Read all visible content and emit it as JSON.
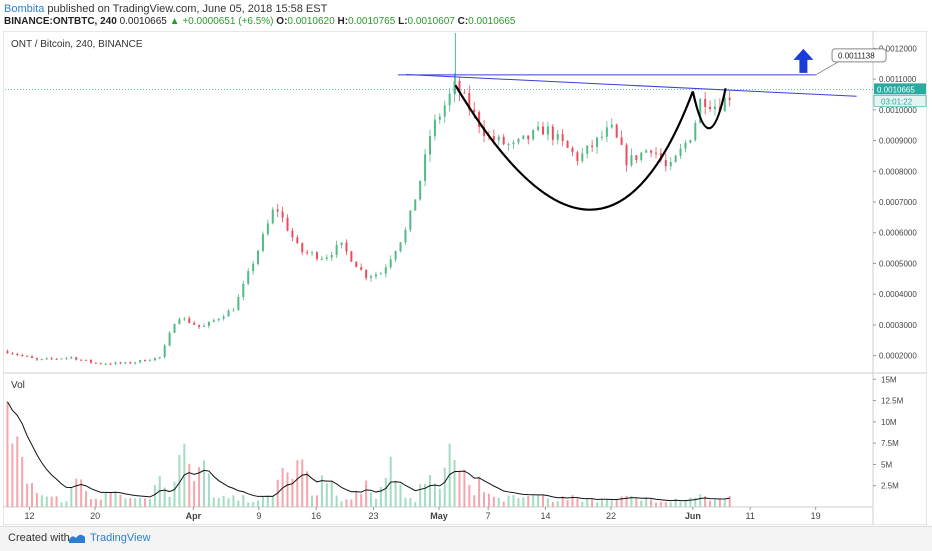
{
  "header": {
    "author": "Bombita",
    "published": "published on TradingView.com, June 05, 2018 15:58 EST",
    "symbol": "BINANCE:ONTBTC, 240",
    "last": "0.0010665",
    "change": "+0.0000651 (+6.5%)",
    "o_label": "O:",
    "o": "0.0010620",
    "h_label": "H:",
    "h": "0.0010765",
    "l_label": "L:",
    "l": "0.0010607",
    "c_label": "C:",
    "c": "0.0010665"
  },
  "footer": {
    "created": "Created with",
    "brand": "TradingView"
  },
  "colors": {
    "up": "#53b987",
    "down": "#eb4d5c",
    "trend": "#3b3fd6",
    "arrow": "#1a3cd8",
    "price_tag": "#2aa9a0"
  },
  "chart_data": [
    {
      "type": "candlestick",
      "title": "ONT / Bitcoin, 240, BINANCE",
      "yaxis_ticks": [
        "0.0012000",
        "0.0011000",
        "0.0010000",
        "0.0009000",
        "0.0008000",
        "0.0007000",
        "0.0006000",
        "0.0005000",
        "0.0004000",
        "0.0003000",
        "0.0002000"
      ],
      "ylim": [
        0.00015,
        0.00125
      ],
      "xaxis_ticks": [
        "12",
        "20",
        "Apr",
        "9",
        "16",
        "23",
        "May",
        "7",
        "14",
        "22",
        "Jun",
        "11",
        "19"
      ],
      "xaxis_days": [
        0,
        8,
        20,
        28,
        35,
        42,
        50,
        56,
        63,
        71,
        81,
        88,
        96
      ],
      "xlim_days": [
        -3,
        103
      ],
      "last_day": 86,
      "price_path": [
        {
          "day": -3,
          "price": 0.000215
        },
        {
          "day": 1,
          "price": 0.000185
        },
        {
          "day": 5,
          "price": 0.000195
        },
        {
          "day": 8,
          "price": 0.000175
        },
        {
          "day": 12,
          "price": 0.000175
        },
        {
          "day": 16,
          "price": 0.000195
        },
        {
          "day": 18,
          "price": 0.00033
        },
        {
          "day": 21,
          "price": 0.00029
        },
        {
          "day": 25,
          "price": 0.000355
        },
        {
          "day": 28,
          "price": 0.00055
        },
        {
          "day": 30,
          "price": 0.00069
        },
        {
          "day": 33,
          "price": 0.00054
        },
        {
          "day": 36,
          "price": 0.00052
        },
        {
          "day": 38,
          "price": 0.00056
        },
        {
          "day": 41,
          "price": 0.00046
        },
        {
          "day": 43,
          "price": 0.00047
        },
        {
          "day": 46,
          "price": 0.00061
        },
        {
          "day": 48,
          "price": 0.0008
        },
        {
          "day": 49,
          "price": 0.00093
        },
        {
          "day": 52,
          "price": 0.00108
        },
        {
          "day": 56,
          "price": 0.00091
        },
        {
          "day": 59,
          "price": 0.00088
        },
        {
          "day": 63,
          "price": 0.00094
        },
        {
          "day": 67,
          "price": 0.00084
        },
        {
          "day": 71,
          "price": 0.00094
        },
        {
          "day": 73,
          "price": 0.00083
        },
        {
          "day": 76,
          "price": 0.00088
        },
        {
          "day": 78,
          "price": 0.0008
        },
        {
          "day": 81,
          "price": 0.00093
        },
        {
          "day": 82,
          "price": 0.00104
        },
        {
          "day": 84,
          "price": 0.00101
        },
        {
          "day": 86,
          "price": 0.00106
        }
      ],
      "spike_high": {
        "day": 52,
        "price": 0.00125
      },
      "current_price": "0.0010665",
      "current_price_value": 0.0010665,
      "countdown": "03:01:22",
      "target_label": "0.0011138",
      "target_value": 0.0011138,
      "trendline": [
        {
          "day": 46,
          "price": 0.001115
        },
        {
          "day": 101,
          "price": 0.001044
        }
      ],
      "cup": {
        "left": {
          "day": 52,
          "price": 0.00108
        },
        "bottom": {
          "day": 70,
          "price": 0.000675
        },
        "right": {
          "day": 81,
          "price": 0.00106
        }
      },
      "handle": {
        "left": {
          "day": 81,
          "price": 0.00106
        },
        "bottom": {
          "day": 83,
          "price": 0.00094
        },
        "right": {
          "day": 85,
          "price": 0.00107
        }
      }
    },
    {
      "type": "bar",
      "title": "Vol",
      "yaxis_ticks": [
        "15M",
        "12.5M",
        "10M",
        "7.5M",
        "5M",
        "2.5M"
      ],
      "ylim": [
        0,
        15500000
      ],
      "spikes": [
        {
          "day": -3,
          "value": 13000000
        },
        {
          "day": -2,
          "value": 11000000
        },
        {
          "day": 0,
          "value": 4500000
        },
        {
          "day": 6,
          "value": 3500000
        },
        {
          "day": 10,
          "value": 2500000
        },
        {
          "day": 16,
          "value": 4000000
        },
        {
          "day": 19,
          "value": 9500000
        },
        {
          "day": 21,
          "value": 6000000
        },
        {
          "day": 31,
          "value": 4500000
        },
        {
          "day": 33,
          "value": 6500000
        },
        {
          "day": 36,
          "value": 4500000
        },
        {
          "day": 41,
          "value": 3500000
        },
        {
          "day": 44,
          "value": 5500000
        },
        {
          "day": 49,
          "value": 6000000
        },
        {
          "day": 52,
          "value": 10500000
        },
        {
          "day": 55,
          "value": 4000000
        },
        {
          "day": 62,
          "value": 1800000
        },
        {
          "day": 72,
          "value": 1400000
        },
        {
          "day": 82,
          "value": 1600000
        }
      ]
    }
  ]
}
